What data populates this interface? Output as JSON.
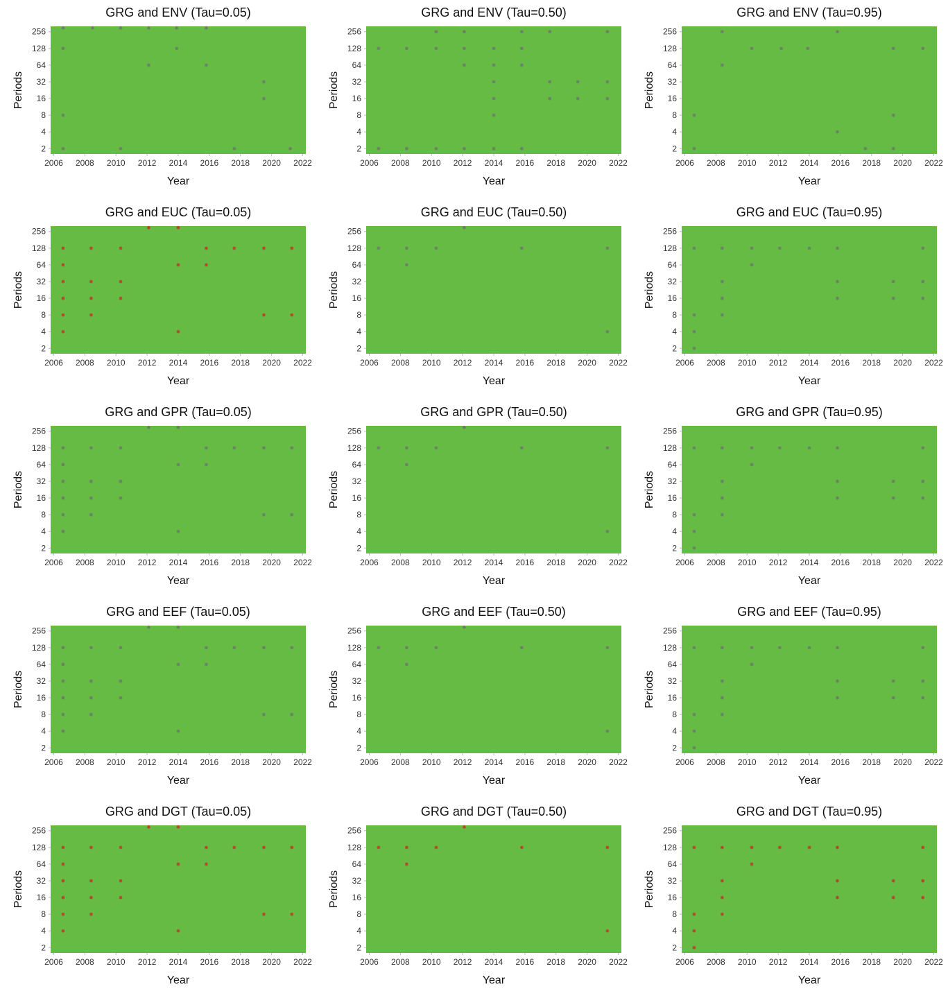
{
  "chart_data": [
    {
      "type": "scatter",
      "title": "GRG and ENV (Tau=0.05)",
      "xlabel": "Year",
      "ylabel": "Periods",
      "log_base": 2,
      "color": "#6b7b6b",
      "xlim": [
        2005.8,
        2022.2
      ],
      "ylim": [
        1.6,
        320
      ],
      "xticks": [
        2006,
        2008,
        2010,
        2012,
        2014,
        2016,
        2018,
        2020,
        2022
      ],
      "yticks": [
        2,
        4,
        8,
        16,
        32,
        64,
        128,
        256
      ],
      "x": [
        2006.6,
        2006.6,
        2006.6,
        2006.6,
        2008.5,
        2010.3,
        2010.3,
        2012.1,
        2012.1,
        2013.9,
        2013.9,
        2015.8,
        2015.8,
        2017.6,
        2019.5,
        2019.5,
        2021.2
      ],
      "values": [
        300,
        128,
        8,
        2,
        300,
        300,
        2,
        300,
        64,
        300,
        128,
        300,
        64,
        2,
        32,
        16,
        2
      ]
    },
    {
      "type": "scatter",
      "title": "GRG and ENV (Tau=0.50)",
      "xlabel": "Year",
      "ylabel": "Periods",
      "log_base": 2,
      "color": "#6b7b6b",
      "xlim": [
        2005.8,
        2022.2
      ],
      "ylim": [
        1.6,
        320
      ],
      "xticks": [
        2006,
        2008,
        2010,
        2012,
        2014,
        2016,
        2018,
        2020,
        2022
      ],
      "yticks": [
        2,
        4,
        8,
        16,
        32,
        64,
        128,
        256
      ],
      "x": [
        2006.6,
        2006.6,
        2008.4,
        2008.4,
        2010.3,
        2010.3,
        2010.3,
        2012.1,
        2012.1,
        2012.1,
        2012.1,
        2014,
        2014,
        2014,
        2014,
        2014,
        2014,
        2015.8,
        2015.8,
        2015.8,
        2015.8,
        2017.6,
        2017.6,
        2017.6,
        2019.4,
        2019.4,
        2021.3,
        2021.3,
        2021.3
      ],
      "values": [
        128,
        2,
        128,
        2,
        256,
        128,
        2,
        256,
        128,
        64,
        2,
        128,
        64,
        32,
        16,
        8,
        2,
        256,
        128,
        64,
        2,
        256,
        32,
        16,
        32,
        16,
        256,
        32,
        16
      ]
    },
    {
      "type": "scatter",
      "title": "GRG and ENV (Tau=0.95)",
      "xlabel": "Year",
      "ylabel": "Periods",
      "log_base": 2,
      "color": "#6b7b6b",
      "xlim": [
        2005.8,
        2022.2
      ],
      "ylim": [
        1.6,
        320
      ],
      "xticks": [
        2006,
        2008,
        2010,
        2012,
        2014,
        2016,
        2018,
        2020,
        2022
      ],
      "yticks": [
        2,
        4,
        8,
        16,
        32,
        64,
        128,
        256
      ],
      "x": [
        2006.6,
        2006.6,
        2008.4,
        2008.4,
        2010.3,
        2012.2,
        2013.9,
        2015.8,
        2015.8,
        2017.6,
        2019.4,
        2019.4,
        2019.4,
        2021.3
      ],
      "values": [
        8,
        2,
        256,
        64,
        128,
        128,
        128,
        256,
        4,
        2,
        128,
        8,
        2,
        128
      ]
    },
    {
      "type": "scatter",
      "title": "GRG and EUC (Tau=0.05)",
      "xlabel": "Year",
      "ylabel": "Periods",
      "log_base": 2,
      "color": "#c0392b",
      "xlim": [
        2005.8,
        2022.2
      ],
      "ylim": [
        1.6,
        320
      ],
      "xticks": [
        2006,
        2008,
        2010,
        2012,
        2014,
        2016,
        2018,
        2020,
        2022
      ],
      "yticks": [
        2,
        4,
        8,
        16,
        32,
        64,
        128,
        256
      ],
      "x": [
        2006.6,
        2006.6,
        2006.6,
        2006.6,
        2006.6,
        2006.6,
        2008.4,
        2008.4,
        2008.4,
        2008.4,
        2010.3,
        2010.3,
        2010.3,
        2012.1,
        2014,
        2014,
        2014,
        2015.8,
        2015.8,
        2017.6,
        2019.5,
        2019.5,
        2021.3,
        2021.3
      ],
      "values": [
        128,
        64,
        32,
        16,
        8,
        4,
        128,
        32,
        16,
        8,
        128,
        32,
        16,
        300,
        300,
        64,
        4,
        128,
        64,
        128,
        128,
        8,
        128,
        8
      ]
    },
    {
      "type": "scatter",
      "title": "GRG and EUC (Tau=0.50)",
      "xlabel": "Year",
      "ylabel": "Periods",
      "log_base": 2,
      "color": "#6b7b6b",
      "xlim": [
        2005.8,
        2022.2
      ],
      "ylim": [
        1.6,
        320
      ],
      "xticks": [
        2006,
        2008,
        2010,
        2012,
        2014,
        2016,
        2018,
        2020,
        2022
      ],
      "yticks": [
        2,
        4,
        8,
        16,
        32,
        64,
        128,
        256
      ],
      "x": [
        2006.6,
        2008.4,
        2008.4,
        2010.3,
        2012.1,
        2015.8,
        2021.3,
        2021.3
      ],
      "values": [
        128,
        128,
        64,
        128,
        300,
        128,
        128,
        4
      ]
    },
    {
      "type": "scatter",
      "title": "GRG and EUC (Tau=0.95)",
      "xlabel": "Year",
      "ylabel": "Periods",
      "log_base": 2,
      "color": "#6b7b6b",
      "xlim": [
        2005.8,
        2022.2
      ],
      "ylim": [
        1.6,
        320
      ],
      "xticks": [
        2006,
        2008,
        2010,
        2012,
        2014,
        2016,
        2018,
        2020,
        2022
      ],
      "yticks": [
        2,
        4,
        8,
        16,
        32,
        64,
        128,
        256
      ],
      "x": [
        2006.6,
        2006.6,
        2006.6,
        2006.6,
        2008.4,
        2008.4,
        2008.4,
        2008.4,
        2010.3,
        2010.3,
        2012.1,
        2014,
        2015.8,
        2015.8,
        2015.8,
        2019.4,
        2019.4,
        2021.3,
        2021.3,
        2021.3
      ],
      "values": [
        128,
        8,
        4,
        2,
        128,
        32,
        16,
        8,
        128,
        64,
        128,
        128,
        128,
        32,
        16,
        32,
        16,
        128,
        32,
        16
      ]
    },
    {
      "type": "scatter",
      "title": "GRG and GPR (Tau=0.05)",
      "xlabel": "Year",
      "ylabel": "Periods",
      "log_base": 2,
      "color": "#6b7b6b",
      "xlim": [
        2005.8,
        2022.2
      ],
      "ylim": [
        1.6,
        320
      ],
      "xticks": [
        2006,
        2008,
        2010,
        2012,
        2014,
        2016,
        2018,
        2020,
        2022
      ],
      "yticks": [
        2,
        4,
        8,
        16,
        32,
        64,
        128,
        256
      ],
      "x": [
        2006.6,
        2006.6,
        2006.6,
        2006.6,
        2006.6,
        2006.6,
        2008.4,
        2008.4,
        2008.4,
        2008.4,
        2010.3,
        2010.3,
        2010.3,
        2012.1,
        2014,
        2014,
        2014,
        2015.8,
        2015.8,
        2017.6,
        2019.5,
        2019.5,
        2021.3,
        2021.3
      ],
      "values": [
        128,
        64,
        32,
        16,
        8,
        4,
        128,
        32,
        16,
        8,
        128,
        32,
        16,
        300,
        300,
        64,
        4,
        128,
        64,
        128,
        128,
        8,
        128,
        8
      ]
    },
    {
      "type": "scatter",
      "title": "GRG and GPR (Tau=0.50)",
      "xlabel": "Year",
      "ylabel": "Periods",
      "log_base": 2,
      "color": "#6b7b6b",
      "xlim": [
        2005.8,
        2022.2
      ],
      "ylim": [
        1.6,
        320
      ],
      "xticks": [
        2006,
        2008,
        2010,
        2012,
        2014,
        2016,
        2018,
        2020,
        2022
      ],
      "yticks": [
        2,
        4,
        8,
        16,
        32,
        64,
        128,
        256
      ],
      "x": [
        2006.6,
        2008.4,
        2008.4,
        2010.3,
        2012.1,
        2015.8,
        2021.3,
        2021.3
      ],
      "values": [
        128,
        128,
        64,
        128,
        300,
        128,
        128,
        4
      ]
    },
    {
      "type": "scatter",
      "title": "GRG and GPR (Tau=0.95)",
      "xlabel": "Year",
      "ylabel": "Periods",
      "log_base": 2,
      "color": "#6b7b6b",
      "xlim": [
        2005.8,
        2022.2
      ],
      "ylim": [
        1.6,
        320
      ],
      "xticks": [
        2006,
        2008,
        2010,
        2012,
        2014,
        2016,
        2018,
        2020,
        2022
      ],
      "yticks": [
        2,
        4,
        8,
        16,
        32,
        64,
        128,
        256
      ],
      "x": [
        2006.6,
        2006.6,
        2006.6,
        2006.6,
        2008.4,
        2008.4,
        2008.4,
        2008.4,
        2010.3,
        2010.3,
        2012.1,
        2014,
        2015.8,
        2015.8,
        2015.8,
        2019.4,
        2019.4,
        2021.3,
        2021.3,
        2021.3
      ],
      "values": [
        128,
        8,
        4,
        2,
        128,
        32,
        16,
        8,
        128,
        64,
        128,
        128,
        128,
        32,
        16,
        32,
        16,
        128,
        32,
        16
      ]
    },
    {
      "type": "scatter",
      "title": "GRG and EEF (Tau=0.05)",
      "xlabel": "Year",
      "ylabel": "Periods",
      "log_base": 2,
      "color": "#6b7b6b",
      "xlim": [
        2005.8,
        2022.2
      ],
      "ylim": [
        1.6,
        320
      ],
      "xticks": [
        2006,
        2008,
        2010,
        2012,
        2014,
        2016,
        2018,
        2020,
        2022
      ],
      "yticks": [
        2,
        4,
        8,
        16,
        32,
        64,
        128,
        256
      ],
      "x": [
        2006.6,
        2006.6,
        2006.6,
        2006.6,
        2006.6,
        2006.6,
        2008.4,
        2008.4,
        2008.4,
        2008.4,
        2010.3,
        2010.3,
        2010.3,
        2012.1,
        2014,
        2014,
        2014,
        2015.8,
        2015.8,
        2017.6,
        2019.5,
        2019.5,
        2021.3,
        2021.3
      ],
      "values": [
        128,
        64,
        32,
        16,
        8,
        4,
        128,
        32,
        16,
        8,
        128,
        32,
        16,
        300,
        300,
        64,
        4,
        128,
        64,
        128,
        128,
        8,
        128,
        8
      ]
    },
    {
      "type": "scatter",
      "title": "GRG and EEF (Tau=0.50)",
      "xlabel": "Year",
      "ylabel": "Periods",
      "log_base": 2,
      "color": "#6b7b6b",
      "xlim": [
        2005.8,
        2022.2
      ],
      "ylim": [
        1.6,
        320
      ],
      "xticks": [
        2006,
        2008,
        2010,
        2012,
        2014,
        2016,
        2018,
        2020,
        2022
      ],
      "yticks": [
        2,
        4,
        8,
        16,
        32,
        64,
        128,
        256
      ],
      "x": [
        2006.6,
        2008.4,
        2008.4,
        2010.3,
        2012.1,
        2015.8,
        2021.3,
        2021.3
      ],
      "values": [
        128,
        128,
        64,
        128,
        300,
        128,
        128,
        4
      ]
    },
    {
      "type": "scatter",
      "title": "GRG and EEF (Tau=0.95)",
      "xlabel": "Year",
      "ylabel": "Periods",
      "log_base": 2,
      "color": "#6b7b6b",
      "xlim": [
        2005.8,
        2022.2
      ],
      "ylim": [
        1.6,
        320
      ],
      "xticks": [
        2006,
        2008,
        2010,
        2012,
        2014,
        2016,
        2018,
        2020,
        2022
      ],
      "yticks": [
        2,
        4,
        8,
        16,
        32,
        64,
        128,
        256
      ],
      "x": [
        2006.6,
        2006.6,
        2006.6,
        2006.6,
        2008.4,
        2008.4,
        2008.4,
        2008.4,
        2010.3,
        2010.3,
        2012.1,
        2014,
        2015.8,
        2015.8,
        2015.8,
        2019.4,
        2019.4,
        2021.3,
        2021.3,
        2021.3
      ],
      "values": [
        128,
        8,
        4,
        2,
        128,
        32,
        16,
        8,
        128,
        64,
        128,
        128,
        128,
        32,
        16,
        32,
        16,
        128,
        32,
        16
      ]
    },
    {
      "type": "scatter",
      "title": "GRG and DGT (Tau=0.05)",
      "xlabel": "Year",
      "ylabel": "Periods",
      "log_base": 2,
      "color": "#c0392b",
      "xlim": [
        2005.8,
        2022.2
      ],
      "ylim": [
        1.6,
        320
      ],
      "xticks": [
        2006,
        2008,
        2010,
        2012,
        2014,
        2016,
        2018,
        2020,
        2022
      ],
      "yticks": [
        2,
        4,
        8,
        16,
        32,
        64,
        128,
        256
      ],
      "x": [
        2006.6,
        2006.6,
        2006.6,
        2006.6,
        2006.6,
        2006.6,
        2008.4,
        2008.4,
        2008.4,
        2008.4,
        2010.3,
        2010.3,
        2010.3,
        2012.1,
        2014,
        2014,
        2014,
        2015.8,
        2015.8,
        2017.6,
        2019.5,
        2019.5,
        2021.3,
        2021.3
      ],
      "values": [
        128,
        64,
        32,
        16,
        8,
        4,
        128,
        32,
        16,
        8,
        128,
        32,
        16,
        300,
        300,
        64,
        4,
        128,
        64,
        128,
        128,
        8,
        128,
        8
      ]
    },
    {
      "type": "scatter",
      "title": "GRG and DGT (Tau=0.50)",
      "xlabel": "Year",
      "ylabel": "Periods",
      "log_base": 2,
      "color": "#c0392b",
      "xlim": [
        2005.8,
        2022.2
      ],
      "ylim": [
        1.6,
        320
      ],
      "xticks": [
        2006,
        2008,
        2010,
        2012,
        2014,
        2016,
        2018,
        2020,
        2022
      ],
      "yticks": [
        2,
        4,
        8,
        16,
        32,
        64,
        128,
        256
      ],
      "x": [
        2006.6,
        2008.4,
        2008.4,
        2010.3,
        2012.1,
        2015.8,
        2021.3,
        2021.3
      ],
      "values": [
        128,
        128,
        64,
        128,
        300,
        128,
        128,
        4
      ]
    },
    {
      "type": "scatter",
      "title": "GRG and DGT (Tau=0.95)",
      "xlabel": "Year",
      "ylabel": "Periods",
      "log_base": 2,
      "color": "#c0392b",
      "xlim": [
        2005.8,
        2022.2
      ],
      "ylim": [
        1.6,
        320
      ],
      "xticks": [
        2006,
        2008,
        2010,
        2012,
        2014,
        2016,
        2018,
        2020,
        2022
      ],
      "yticks": [
        2,
        4,
        8,
        16,
        32,
        64,
        128,
        256
      ],
      "x": [
        2006.6,
        2006.6,
        2006.6,
        2006.6,
        2008.4,
        2008.4,
        2008.4,
        2008.4,
        2010.3,
        2010.3,
        2012.1,
        2014,
        2015.8,
        2015.8,
        2015.8,
        2019.4,
        2019.4,
        2021.3,
        2021.3,
        2021.3
      ],
      "values": [
        128,
        8,
        4,
        2,
        128,
        32,
        16,
        8,
        128,
        64,
        128,
        128,
        128,
        32,
        16,
        32,
        16,
        128,
        32,
        16
      ]
    }
  ]
}
